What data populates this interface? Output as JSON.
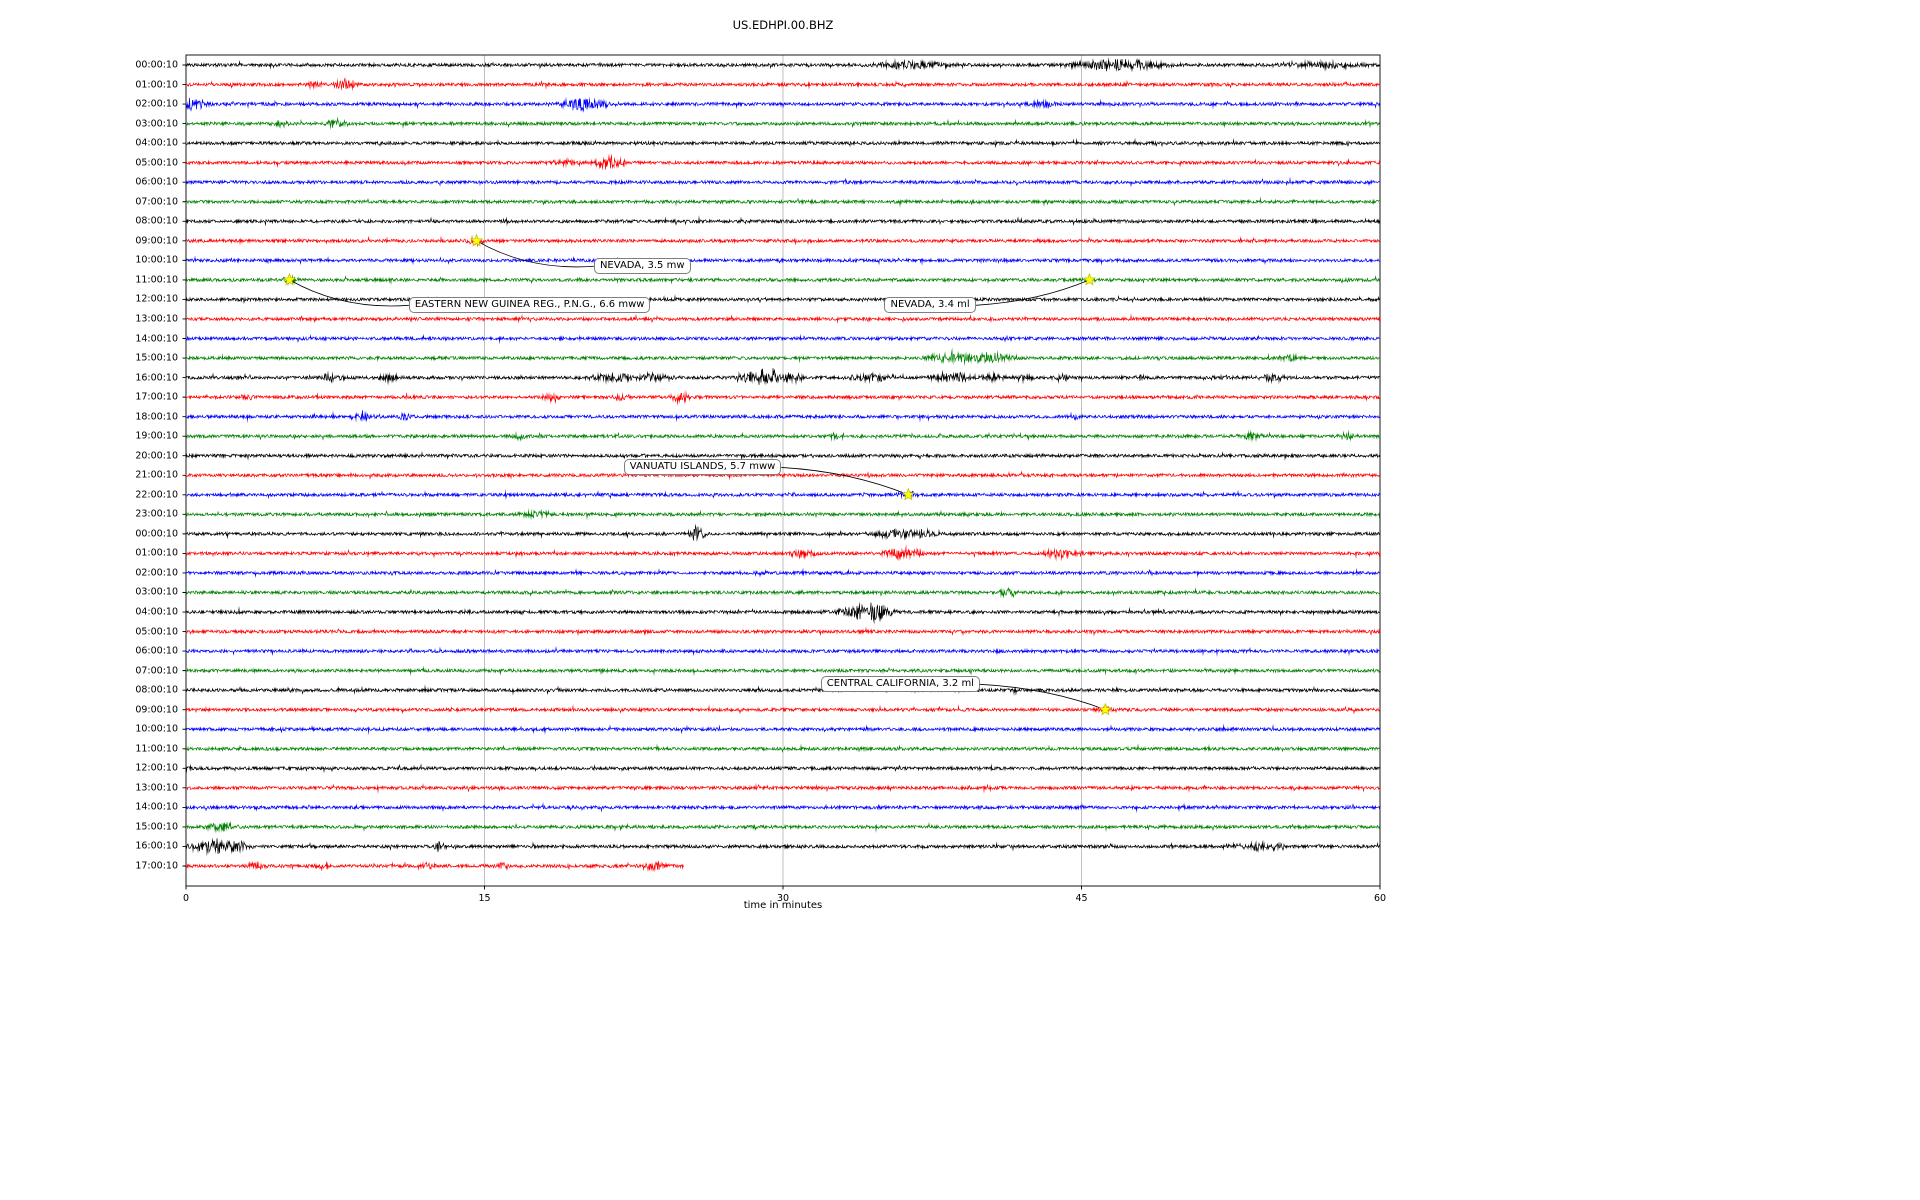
{
  "chart_data": {
    "type": "line",
    "subtype": "seismogram-dayplot",
    "title": "US.EDHPI.00.BHZ",
    "xlabel": "time in minutes",
    "xlim": [
      0,
      60
    ],
    "x_ticks": [
      0,
      15,
      30,
      45,
      60
    ],
    "grid_x": [
      15,
      30,
      45
    ],
    "grid_color": "#b0b0b0",
    "color_cycle": [
      "#000000",
      "#ff0000",
      "#0000ff",
      "#008000"
    ],
    "marker_color": "#ffff00",
    "row_labels": [
      "00:00:10",
      "01:00:10",
      "02:00:10",
      "03:00:10",
      "04:00:10",
      "05:00:10",
      "06:00:10",
      "07:00:10",
      "08:00:10",
      "09:00:10",
      "10:00:10",
      "11:00:10",
      "12:00:10",
      "13:00:10",
      "14:00:10",
      "15:00:10",
      "16:00:10",
      "17:00:10",
      "18:00:10",
      "19:00:10",
      "20:00:10",
      "21:00:10",
      "22:00:10",
      "23:00:10",
      "00:00:10",
      "01:00:10",
      "02:00:10",
      "03:00:10",
      "04:00:10",
      "05:00:10",
      "06:00:10",
      "07:00:10",
      "08:00:10",
      "09:00:10",
      "10:00:10",
      "11:00:10",
      "12:00:10",
      "13:00:10",
      "14:00:10",
      "15:00:10",
      "16:00:10",
      "17:00:10"
    ],
    "last_row_end_minute": 25,
    "events": [
      {
        "label": "NEVADA, 3.5 mw",
        "row": 9,
        "x": 14.6,
        "box_x": 20.5,
        "box_row": 10.3,
        "side": "left"
      },
      {
        "label": "EASTERN NEW GUINEA REG., P.N.G., 6.6 mww",
        "row": 11,
        "x": 5.2,
        "box_x": 11.2,
        "box_row": 12.3,
        "side": "left"
      },
      {
        "label": "NEVADA, 3.4 ml",
        "row": 11,
        "x": 45.4,
        "box_x": 35.1,
        "box_row": 12.3,
        "side": "right"
      },
      {
        "label": "VANUATU ISLANDS, 5.7 mww",
        "row": 22,
        "x": 36.3,
        "box_x": 22.0,
        "box_row": 20.6,
        "side": "right"
      },
      {
        "label": "CENTRAL CALIFORNIA, 3.2 ml",
        "row": 33,
        "x": 46.2,
        "box_x": 31.9,
        "box_row": 31.7,
        "side": "right"
      }
    ],
    "bursts": [
      [
        0,
        36.5,
        1.2,
        4
      ],
      [
        0,
        46.8,
        1.5,
        5.5
      ],
      [
        0,
        57.0,
        1.5,
        3
      ],
      [
        1,
        8.0,
        0.4,
        5.5
      ],
      [
        1,
        6.5,
        0.3,
        3
      ],
      [
        2,
        0.4,
        0.4,
        6
      ],
      [
        2,
        20.0,
        0.8,
        6
      ],
      [
        2,
        43.0,
        0.5,
        3
      ],
      [
        3,
        4.8,
        0.3,
        3
      ],
      [
        3,
        7.6,
        0.3,
        4.5
      ],
      [
        5,
        21.3,
        0.4,
        9
      ],
      [
        5,
        19.0,
        0.6,
        3
      ],
      [
        9,
        14.6,
        0.3,
        3
      ],
      [
        11,
        5.2,
        0.3,
        3
      ],
      [
        11,
        45.4,
        0.3,
        3
      ],
      [
        15,
        38.8,
        1.0,
        5
      ],
      [
        15,
        40.5,
        0.8,
        4
      ],
      [
        15,
        55.5,
        0.6,
        3
      ],
      [
        16,
        7.3,
        0.4,
        4
      ],
      [
        16,
        10.2,
        0.3,
        4.5
      ],
      [
        16,
        21.5,
        0.8,
        4
      ],
      [
        16,
        23.5,
        0.6,
        4
      ],
      [
        16,
        28.3,
        0.5,
        5
      ],
      [
        16,
        29.3,
        0.4,
        9.5
      ],
      [
        16,
        30.5,
        0.4,
        4.5
      ],
      [
        16,
        34.5,
        0.8,
        4
      ],
      [
        16,
        38.5,
        0.7,
        5
      ],
      [
        16,
        40.5,
        0.5,
        4
      ],
      [
        16,
        42.0,
        0.4,
        3
      ],
      [
        16,
        44.0,
        0.3,
        3
      ],
      [
        16,
        48.0,
        0.3,
        3
      ],
      [
        16,
        52.0,
        0.4,
        3
      ],
      [
        16,
        54.5,
        0.5,
        4
      ],
      [
        17,
        3.0,
        0.3,
        3
      ],
      [
        17,
        18.4,
        0.3,
        4.5
      ],
      [
        17,
        22.0,
        0.3,
        3
      ],
      [
        17,
        24.8,
        0.3,
        5.5
      ],
      [
        18,
        8.8,
        0.4,
        3.5
      ],
      [
        18,
        11.0,
        0.3,
        3
      ],
      [
        18,
        44.5,
        0.3,
        2.5
      ],
      [
        19,
        16.8,
        0.3,
        3
      ],
      [
        19,
        32.6,
        0.3,
        3
      ],
      [
        19,
        53.5,
        0.4,
        3.5
      ],
      [
        19,
        58.3,
        0.3,
        3
      ],
      [
        22,
        36.3,
        0.4,
        3
      ],
      [
        23,
        17.6,
        0.5,
        3
      ],
      [
        24,
        25.7,
        0.3,
        7.5
      ],
      [
        24,
        35.8,
        0.8,
        5
      ],
      [
        24,
        37.3,
        0.4,
        4.5
      ],
      [
        25,
        31.0,
        0.4,
        4
      ],
      [
        25,
        35.8,
        0.6,
        5.5
      ],
      [
        25,
        36.6,
        0.3,
        4
      ],
      [
        25,
        43.8,
        0.5,
        4.5
      ],
      [
        25,
        44.8,
        0.3,
        3
      ],
      [
        27,
        41.3,
        0.3,
        4.5
      ],
      [
        28,
        33.8,
        0.5,
        6.5
      ],
      [
        28,
        34.8,
        0.5,
        8
      ],
      [
        28,
        34.0,
        1.2,
        3
      ],
      [
        33,
        46.2,
        0.3,
        3
      ],
      [
        39,
        1.8,
        0.5,
        4.5
      ],
      [
        40,
        1.5,
        0.8,
        6.5
      ],
      [
        40,
        2.5,
        0.5,
        5
      ],
      [
        40,
        12.7,
        0.2,
        4.5
      ],
      [
        40,
        52.8,
        0.4,
        3
      ],
      [
        40,
        54.0,
        0.5,
        4.5
      ],
      [
        40,
        55.0,
        0.3,
        3
      ],
      [
        41,
        3.5,
        0.3,
        4
      ],
      [
        41,
        6.8,
        0.3,
        3
      ],
      [
        41,
        12.0,
        0.3,
        3
      ],
      [
        41,
        16.0,
        0.3,
        3
      ],
      [
        41,
        23.5,
        0.4,
        4.5
      ]
    ]
  }
}
